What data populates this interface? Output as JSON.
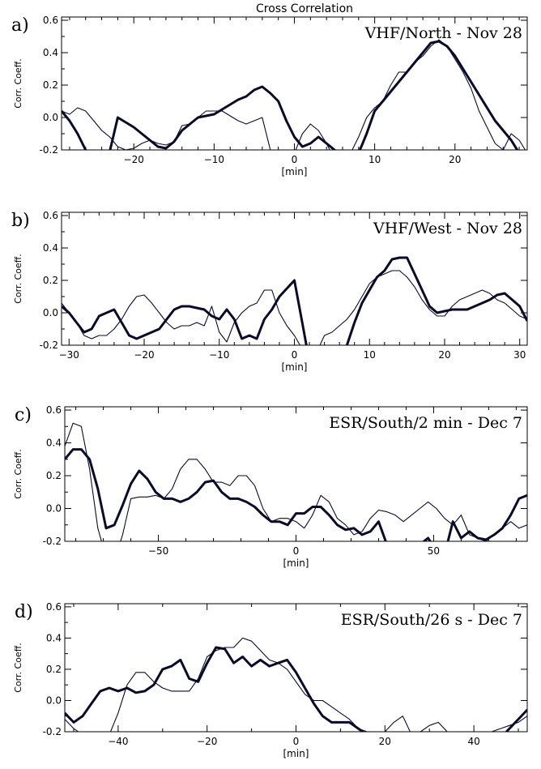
{
  "figure": {
    "title": "Cross Correlation"
  },
  "chart_data": [
    {
      "type": "line",
      "panel_label": "a)",
      "title": "VHF/North - Nov 28",
      "xlabel": "[min]",
      "ylabel": "Corr. Coeff.",
      "xlim": [
        -29,
        29
      ],
      "ylim": [
        -0.2,
        0.62
      ],
      "xticks": [
        -20,
        -10,
        0,
        10,
        20
      ],
      "yticks": [
        -0.2,
        0.0,
        0.2,
        0.4,
        0.6
      ],
      "ytick_labels": [
        "-0.2",
        "0.0",
        "0.2",
        "0.4",
        "0.6"
      ],
      "series": [
        {
          "style": "thick",
          "x": [
            -29,
            -28,
            -27,
            -26,
            -25,
            -24,
            -23,
            -22,
            -21,
            -20,
            -19,
            -18,
            -17,
            -16,
            -15,
            -14,
            -13,
            -12,
            -11,
            -10,
            -9,
            -8,
            -7,
            -6,
            -5,
            -4,
            -3,
            -2,
            -1,
            0,
            1,
            2,
            3,
            4,
            5,
            6,
            7,
            8,
            9,
            10,
            11,
            12,
            13,
            14,
            15,
            16,
            17,
            18,
            19,
            20,
            21,
            22,
            23,
            24,
            25,
            26,
            27,
            28,
            29
          ],
          "y": [
            0.04,
            -0.02,
            -0.1,
            -0.2,
            -0.24,
            -0.26,
            -0.21,
            0.0,
            -0.03,
            -0.06,
            -0.1,
            -0.14,
            -0.18,
            -0.19,
            -0.15,
            -0.08,
            -0.04,
            0.0,
            0.01,
            0.02,
            0.05,
            0.08,
            0.11,
            0.13,
            0.17,
            0.19,
            0.15,
            0.1,
            -0.02,
            -0.12,
            -0.18,
            -0.16,
            -0.12,
            -0.16,
            -0.2,
            -0.24,
            -0.26,
            -0.22,
            -0.1,
            0.04,
            0.1,
            0.16,
            0.22,
            0.28,
            0.34,
            0.4,
            0.46,
            0.47,
            0.44,
            0.38,
            0.3,
            0.22,
            0.14,
            0.06,
            -0.02,
            -0.08,
            -0.14,
            -0.22,
            -0.28
          ]
        },
        {
          "style": "thin",
          "x": [
            -29,
            -28,
            -27,
            -26,
            -25,
            -24,
            -23,
            -22,
            -21,
            -20,
            -19,
            -18,
            -17,
            -16,
            -15,
            -14,
            -13,
            -12,
            -11,
            -10,
            -9,
            -8,
            -7,
            -6,
            -5,
            -4,
            -3,
            -2,
            -1,
            0,
            1,
            2,
            3,
            4,
            5,
            6,
            7,
            8,
            9,
            10,
            11,
            12,
            13,
            14,
            15,
            16,
            17,
            18,
            19,
            20,
            21,
            22,
            23,
            24,
            25,
            26,
            27,
            28,
            29
          ],
          "y": [
            0.04,
            0.02,
            0.06,
            0.04,
            -0.02,
            -0.08,
            -0.12,
            -0.18,
            -0.2,
            -0.19,
            -0.16,
            -0.14,
            -0.16,
            -0.17,
            -0.15,
            -0.05,
            -0.04,
            0.0,
            0.04,
            0.04,
            0.04,
            0.01,
            -0.02,
            -0.04,
            -0.02,
            0.0,
            -0.2,
            -0.26,
            -0.2,
            -0.22,
            -0.1,
            -0.04,
            -0.08,
            -0.16,
            -0.26,
            -0.28,
            -0.22,
            -0.12,
            0.0,
            0.06,
            0.1,
            0.2,
            0.28,
            0.28,
            0.34,
            0.38,
            0.44,
            0.48,
            0.44,
            0.36,
            0.28,
            0.18,
            0.04,
            -0.06,
            -0.16,
            -0.2,
            -0.1,
            -0.14,
            -0.22
          ]
        }
      ]
    },
    {
      "type": "line",
      "panel_label": "b)",
      "title": "VHF/West - Nov 28",
      "xlabel": "[min]",
      "ylabel": "Corr. Coeff.",
      "xlim": [
        -31,
        31
      ],
      "ylim": [
        -0.2,
        0.62
      ],
      "xticks": [
        -30,
        -20,
        -10,
        0,
        10,
        20,
        30
      ],
      "yticks": [
        -0.2,
        0.0,
        0.2,
        0.4,
        0.6
      ],
      "ytick_labels": [
        "-0.2",
        "0.0",
        "0.2",
        "0.4",
        "0.6"
      ],
      "series": [
        {
          "style": "thick",
          "x": [
            -31,
            -30,
            -29,
            -28,
            -27,
            -26,
            -25,
            -24,
            -23,
            -22,
            -21,
            -20,
            -19,
            -18,
            -17,
            -16,
            -15,
            -14,
            -13,
            -12,
            -11,
            -10,
            -9,
            -8,
            -7,
            -6,
            -5,
            -4,
            -3,
            -2,
            -1,
            0,
            1,
            2,
            3,
            4,
            5,
            6,
            7,
            8,
            9,
            10,
            11,
            12,
            13,
            14,
            15,
            16,
            17,
            18,
            19,
            20,
            21,
            22,
            23,
            24,
            25,
            26,
            27,
            28,
            29,
            30,
            31
          ],
          "y": [
            0.04,
            0.0,
            -0.06,
            -0.12,
            -0.1,
            -0.02,
            0.0,
            0.02,
            -0.06,
            -0.14,
            -0.16,
            -0.14,
            -0.12,
            -0.1,
            -0.04,
            0.02,
            0.04,
            0.04,
            0.03,
            0.02,
            -0.02,
            -0.04,
            0.02,
            -0.04,
            -0.16,
            -0.14,
            -0.16,
            -0.04,
            0.02,
            0.1,
            0.15,
            0.2,
            -0.05,
            -0.3,
            -0.3,
            -0.3,
            -0.3,
            -0.28,
            -0.2,
            -0.06,
            0.06,
            0.14,
            0.22,
            0.26,
            0.33,
            0.34,
            0.34,
            0.24,
            0.14,
            0.04,
            0.0,
            0.01,
            0.02,
            0.02,
            0.02,
            0.04,
            0.06,
            0.08,
            0.11,
            0.12,
            0.08,
            0.04,
            -0.05
          ]
        },
        {
          "style": "thin",
          "x": [
            -31,
            -30,
            -29,
            -28,
            -27,
            -26,
            -25,
            -24,
            -23,
            -22,
            -21,
            -20,
            -19,
            -18,
            -17,
            -16,
            -15,
            -14,
            -13,
            -12,
            -11,
            -10,
            -9,
            -8,
            -7,
            -6,
            -5,
            -4,
            -3,
            -2,
            -1,
            0,
            1,
            2,
            3,
            4,
            5,
            6,
            7,
            8,
            9,
            10,
            11,
            12,
            13,
            14,
            15,
            16,
            17,
            18,
            19,
            20,
            21,
            22,
            23,
            24,
            25,
            26,
            27,
            28,
            29,
            30,
            31
          ],
          "y": [
            0.06,
            0.0,
            -0.06,
            -0.14,
            -0.16,
            -0.14,
            -0.14,
            -0.1,
            -0.04,
            0.04,
            0.1,
            0.11,
            0.06,
            0.0,
            -0.06,
            -0.1,
            -0.08,
            -0.08,
            -0.06,
            -0.08,
            0.04,
            -0.12,
            -0.18,
            -0.06,
            0.0,
            0.04,
            0.06,
            0.14,
            0.14,
            0.0,
            -0.08,
            -0.14,
            -0.22,
            -0.26,
            -0.24,
            -0.14,
            -0.12,
            -0.08,
            -0.04,
            0.02,
            0.1,
            0.18,
            0.22,
            0.24,
            0.26,
            0.26,
            0.22,
            0.16,
            0.08,
            0.02,
            -0.02,
            -0.02,
            0.04,
            0.08,
            0.1,
            0.12,
            0.14,
            0.12,
            0.08,
            0.06,
            0.02,
            -0.02,
            -0.04
          ]
        }
      ]
    },
    {
      "type": "line",
      "panel_label": "c)",
      "title": "ESR/South/2 min - Dec 7",
      "xlabel": "[min]",
      "ylabel": "Corr. Coeff.",
      "xlim": [
        -84,
        84
      ],
      "ylim": [
        -0.2,
        0.62
      ],
      "xticks": [
        -50,
        0,
        50
      ],
      "yticks": [
        -0.2,
        0.0,
        0.2,
        0.4,
        0.6
      ],
      "ytick_labels": [
        "-0.2",
        "0.0",
        "0.2",
        "0.4",
        "0.6"
      ],
      "series": [
        {
          "style": "thick",
          "x": [
            -84,
            -81,
            -78,
            -75,
            -72,
            -69,
            -66,
            -63,
            -60,
            -57,
            -54,
            -51,
            -48,
            -45,
            -42,
            -39,
            -36,
            -33,
            -30,
            -27,
            -24,
            -21,
            -18,
            -15,
            -12,
            -9,
            -6,
            -3,
            0,
            3,
            6,
            9,
            12,
            15,
            18,
            21,
            24,
            27,
            30,
            33,
            36,
            39,
            42,
            45,
            48,
            51,
            54,
            57,
            60,
            63,
            66,
            69,
            72,
            75,
            78,
            81,
            84
          ],
          "y": [
            0.3,
            0.36,
            0.36,
            0.3,
            0.12,
            -0.12,
            -0.1,
            0.02,
            0.15,
            0.23,
            0.18,
            0.1,
            0.06,
            0.06,
            0.04,
            0.06,
            0.1,
            0.16,
            0.17,
            0.1,
            0.06,
            0.06,
            0.04,
            0.01,
            -0.04,
            -0.08,
            -0.08,
            -0.1,
            -0.03,
            -0.03,
            0.01,
            0.01,
            -0.04,
            -0.1,
            -0.13,
            -0.12,
            -0.16,
            -0.14,
            -0.08,
            -0.22,
            -0.3,
            -0.3,
            -0.28,
            -0.22,
            -0.18,
            -0.26,
            -0.28,
            -0.08,
            -0.18,
            -0.14,
            -0.18,
            -0.19,
            -0.16,
            -0.12,
            -0.04,
            0.06,
            0.08
          ]
        },
        {
          "style": "thin",
          "x": [
            -84,
            -81,
            -78,
            -75,
            -72,
            -69,
            -66,
            -63,
            -60,
            -57,
            -54,
            -51,
            -48,
            -45,
            -42,
            -39,
            -36,
            -33,
            -30,
            -27,
            -24,
            -21,
            -18,
            -15,
            -12,
            -9,
            -6,
            -3,
            0,
            3,
            6,
            9,
            12,
            15,
            18,
            21,
            24,
            27,
            30,
            33,
            36,
            39,
            42,
            45,
            48,
            51,
            54,
            57,
            60,
            63,
            66,
            69,
            72,
            75,
            78,
            81,
            84
          ],
          "y": [
            0.38,
            0.52,
            0.5,
            0.24,
            -0.12,
            -0.3,
            -0.32,
            -0.16,
            0.06,
            0.07,
            0.07,
            0.08,
            0.06,
            0.12,
            0.24,
            0.3,
            0.3,
            0.24,
            0.16,
            0.16,
            0.14,
            0.2,
            0.2,
            0.14,
            0.0,
            -0.08,
            -0.06,
            -0.06,
            -0.08,
            -0.12,
            -0.04,
            0.08,
            0.04,
            -0.06,
            -0.1,
            -0.16,
            -0.14,
            -0.06,
            -0.01,
            -0.02,
            -0.04,
            -0.08,
            -0.04,
            0.0,
            0.04,
            0.0,
            -0.06,
            -0.1,
            -0.04,
            -0.16,
            -0.18,
            -0.2,
            -0.16,
            -0.12,
            -0.08,
            -0.12,
            -0.1
          ]
        }
      ]
    },
    {
      "type": "line",
      "panel_label": "d)",
      "title": "ESR/South/26 s - Dec 7",
      "xlabel": "[min]",
      "ylabel": "Corr. Coeff.",
      "xlim": [
        -52,
        52
      ],
      "ylim": [
        -0.2,
        0.62
      ],
      "xticks": [
        -40,
        -20,
        0,
        20,
        40
      ],
      "yticks": [
        -0.2,
        0.0,
        0.2,
        0.4,
        0.6
      ],
      "ytick_labels": [
        "-0.2",
        "0.0",
        "0.2",
        "0.4",
        "0.6"
      ],
      "series": [
        {
          "style": "thick",
          "x": [
            -52,
            -50,
            -48,
            -46,
            -44,
            -42,
            -40,
            -38,
            -36,
            -34,
            -32,
            -30,
            -28,
            -26,
            -24,
            -22,
            -20,
            -18,
            -16,
            -14,
            -12,
            -10,
            -8,
            -6,
            -4,
            -2,
            0,
            2,
            4,
            6,
            8,
            10,
            12,
            14,
            16,
            18,
            20,
            22,
            24,
            26,
            28,
            30,
            32,
            34,
            36,
            38,
            40,
            42,
            44,
            46,
            48,
            50,
            52
          ],
          "y": [
            -0.08,
            -0.14,
            -0.1,
            -0.02,
            0.06,
            0.08,
            0.06,
            0.08,
            0.05,
            0.06,
            0.1,
            0.2,
            0.22,
            0.26,
            0.14,
            0.12,
            0.24,
            0.34,
            0.33,
            0.24,
            0.28,
            0.22,
            0.26,
            0.22,
            0.24,
            0.26,
            0.18,
            0.08,
            -0.02,
            -0.1,
            -0.14,
            -0.14,
            -0.14,
            -0.18,
            -0.22,
            -0.28,
            -0.3,
            -0.3,
            -0.3,
            -0.3,
            -0.3,
            -0.3,
            -0.3,
            -0.3,
            -0.3,
            -0.3,
            -0.3,
            -0.3,
            -0.28,
            -0.24,
            -0.18,
            -0.12,
            -0.06
          ]
        },
        {
          "style": "thin",
          "x": [
            -52,
            -50,
            -48,
            -46,
            -44,
            -42,
            -40,
            -38,
            -36,
            -34,
            -32,
            -30,
            -28,
            -26,
            -24,
            -22,
            -20,
            -18,
            -16,
            -14,
            -12,
            -10,
            -8,
            -6,
            -4,
            -2,
            0,
            2,
            4,
            6,
            8,
            10,
            12,
            14,
            16,
            18,
            20,
            22,
            24,
            26,
            28,
            30,
            32,
            34,
            36,
            38,
            40,
            42,
            44,
            46,
            48,
            50,
            52
          ],
          "y": [
            -0.12,
            -0.18,
            -0.22,
            -0.26,
            -0.28,
            -0.22,
            -0.08,
            0.1,
            0.18,
            0.18,
            0.12,
            0.08,
            0.06,
            0.06,
            0.06,
            0.14,
            0.28,
            0.32,
            0.34,
            0.34,
            0.4,
            0.38,
            0.32,
            0.26,
            0.24,
            0.2,
            0.12,
            0.04,
            0.0,
            0.0,
            -0.04,
            -0.08,
            -0.12,
            -0.18,
            -0.2,
            -0.22,
            -0.2,
            -0.14,
            -0.1,
            -0.22,
            -0.2,
            -0.16,
            -0.14,
            -0.2,
            -0.26,
            -0.3,
            -0.28,
            -0.24,
            -0.2,
            -0.18,
            -0.16,
            -0.14,
            -0.1
          ]
        }
      ]
    }
  ]
}
